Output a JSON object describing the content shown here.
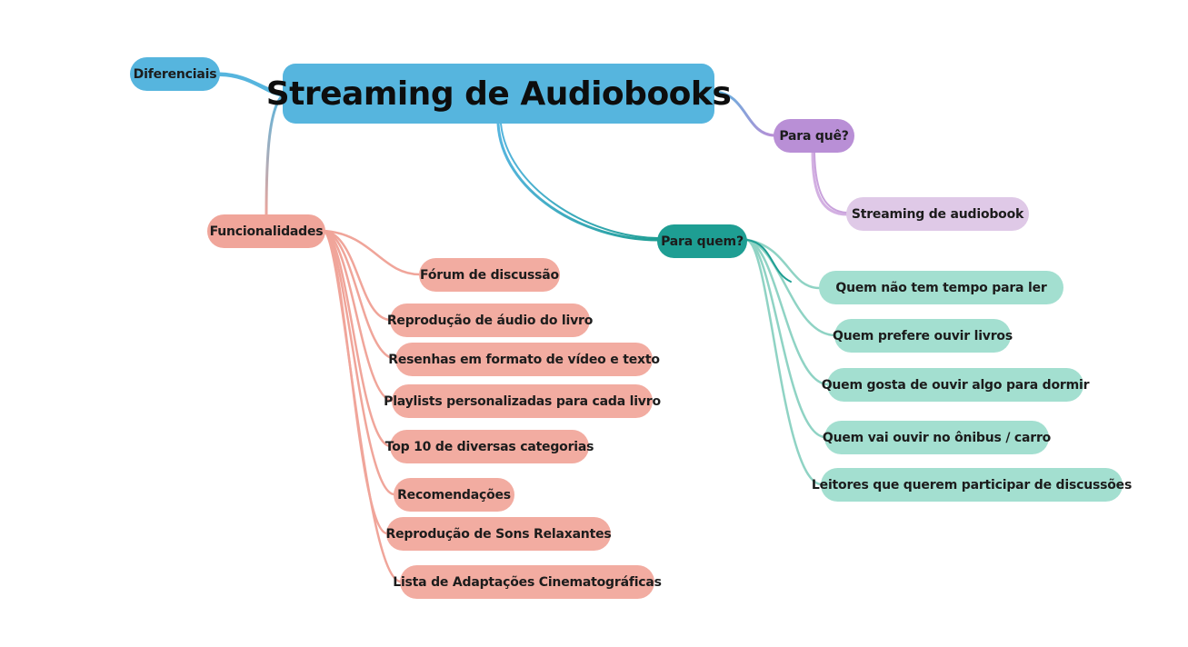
{
  "colors": {
    "central": "#56b5de",
    "diferenciais": "#56b5de",
    "para_que": "#b98fd6",
    "para_que_child": "#dfc9e7",
    "para_quem": "#1e9e93",
    "para_quem_child": "#a3dfd0",
    "funcionalidades": "#f0a59a",
    "funcionalidades_child": "#f2aca1"
  },
  "mindmap": {
    "central": {
      "label": "Streaming de Audiobooks"
    },
    "diferenciais": {
      "label": "Diferenciais"
    },
    "para_que": {
      "label": "Para quê?",
      "children": [
        "Streaming de audiobook"
      ]
    },
    "para_quem": {
      "label": "Para quem?",
      "children": [
        "Quem não tem tempo para ler",
        "Quem prefere ouvir livros",
        "Quem gosta de ouvir algo para dormir",
        "Quem vai ouvir no ônibus / carro",
        "Leitores que querem participar de discussões"
      ]
    },
    "funcionalidades": {
      "label": "Funcionalidades",
      "children": [
        "Fórum de discussão",
        "Reprodução de áudio do livro",
        "Resenhas em formato de vídeo e texto",
        "Playlists personalizadas para cada livro",
        "Top 10 de diversas categorias",
        "Recomendações",
        "Reprodução de Sons Relaxantes",
        "Lista de Adaptações Cinematográficas"
      ]
    }
  }
}
